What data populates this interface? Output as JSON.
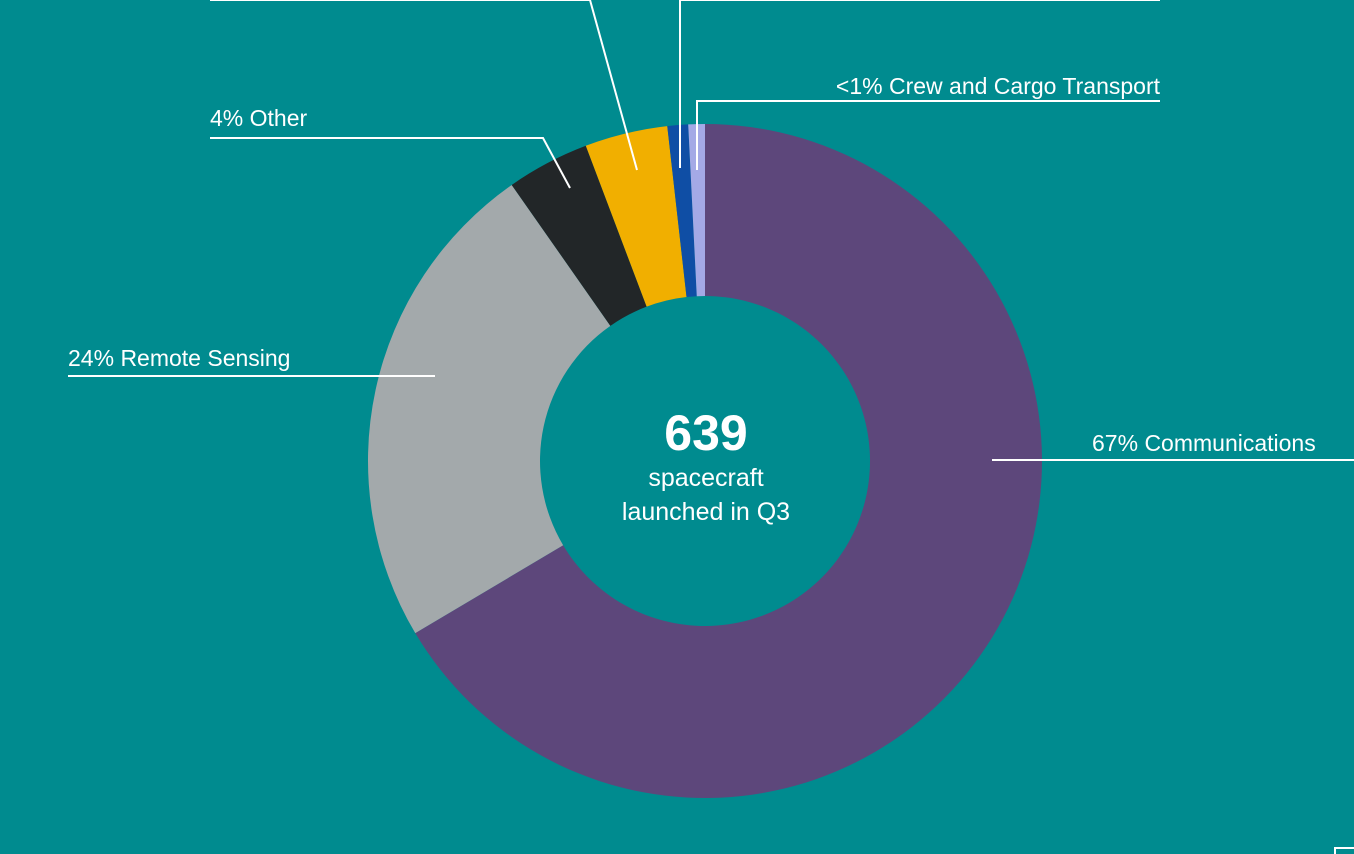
{
  "chart_data": {
    "type": "donut",
    "categories": [
      "Communications",
      "Remote Sensing",
      "Other",
      null,
      null,
      "Crew and Cargo Transport"
    ],
    "values": [
      67,
      24,
      4,
      4,
      1,
      0.8
    ],
    "value_labels": [
      "67%",
      "24%",
      "4%",
      null,
      null,
      "<1%"
    ],
    "colors": [
      "#5d477b",
      "#a3a9ab",
      "#222628",
      "#f1af00",
      "#0f4ea5",
      "#a4a9e6"
    ],
    "center_value": "639",
    "center_text": [
      "spacecraft",
      "launched in Q3"
    ]
  }
}
